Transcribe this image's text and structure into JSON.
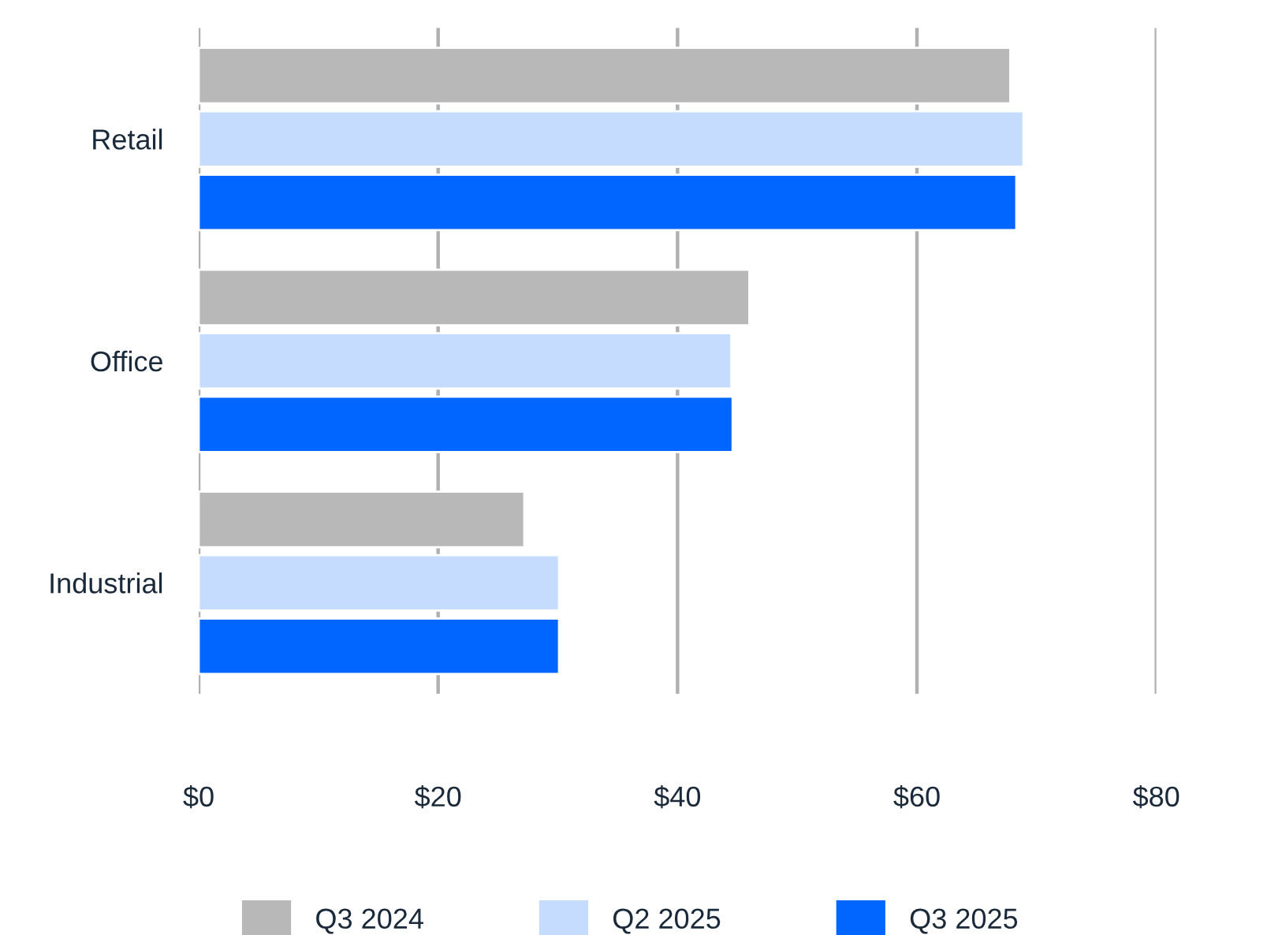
{
  "chart_data": {
    "type": "bar",
    "orientation": "horizontal",
    "categories": [
      "Retail",
      "Office",
      "Industrial"
    ],
    "series": [
      {
        "name": "Q3 2024",
        "color": "#b8b8b8",
        "values": [
          67.8,
          46.0,
          27.2
        ]
      },
      {
        "name": "Q2 2025",
        "color": "#c5dcff",
        "values": [
          68.9,
          44.5,
          30.1
        ]
      },
      {
        "name": "Q3 2025",
        "color": "#0066ff",
        "values": [
          68.3,
          44.6,
          30.1
        ]
      }
    ],
    "xlim": [
      0,
      80
    ],
    "xticks": [
      {
        "value": 0,
        "label": "$0"
      },
      {
        "value": 20,
        "label": "$20"
      },
      {
        "value": 40,
        "label": "$40"
      },
      {
        "value": 60,
        "label": "$60"
      },
      {
        "value": 80,
        "label": "$80"
      }
    ],
    "grid": "x",
    "legend": "bottom"
  }
}
